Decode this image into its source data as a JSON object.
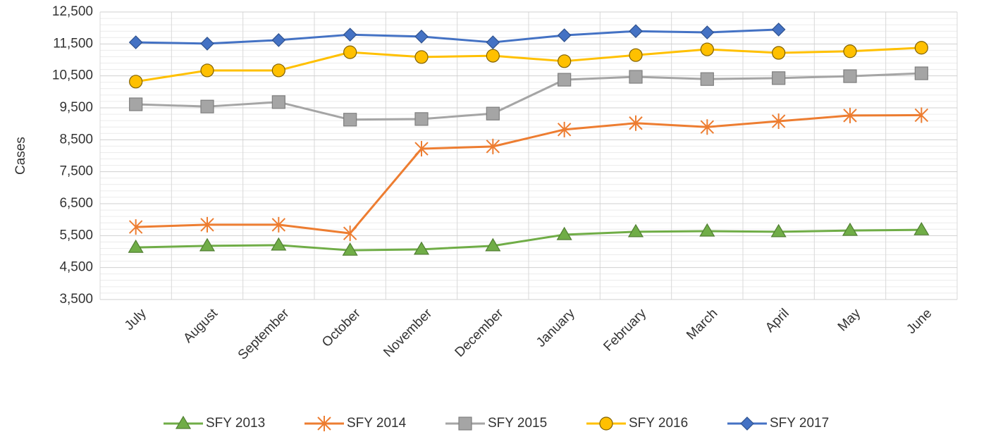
{
  "chart_data": {
    "type": "line",
    "y_label": "Cases",
    "categories": [
      "July",
      "August",
      "September",
      "October",
      "November",
      "December",
      "January",
      "February",
      "March",
      "April",
      "May",
      "June"
    ],
    "series": [
      {
        "name": "SFY 2013",
        "color": "#70ad47",
        "marker": "triangle",
        "values": [
          5130,
          5180,
          5200,
          5040,
          5070,
          5180,
          5530,
          5620,
          5640,
          5620,
          5660,
          5680
        ]
      },
      {
        "name": "SFY 2014",
        "color": "#ed7d31",
        "marker": "star",
        "values": [
          5770,
          5840,
          5840,
          5570,
          8220,
          8290,
          8820,
          9020,
          8900,
          9080,
          9260,
          9270
        ]
      },
      {
        "name": "SFY 2015",
        "color": "#a5a5a5",
        "marker": "square",
        "values": [
          9610,
          9540,
          9680,
          9130,
          9150,
          9320,
          10380,
          10470,
          10400,
          10430,
          10490,
          10580
        ]
      },
      {
        "name": "SFY 2016",
        "color": "#ffc000",
        "marker": "circle",
        "values": [
          10320,
          10670,
          10670,
          11240,
          11090,
          11130,
          10960,
          11150,
          11330,
          11220,
          11270,
          11380
        ]
      },
      {
        "name": "SFY 2017",
        "color": "#4472c4",
        "marker": "diamond",
        "values": [
          11550,
          11510,
          11620,
          11790,
          11730,
          11550,
          11770,
          11900,
          11860,
          11950,
          null,
          null
        ]
      }
    ],
    "ylim": [
      3500,
      12500
    ],
    "yticks": [
      {
        "value": 3500,
        "label": "3,500"
      },
      {
        "value": 4500,
        "label": "4,500"
      },
      {
        "value": 5500,
        "label": "5,500"
      },
      {
        "value": 6500,
        "label": "6,500"
      },
      {
        "value": 7500,
        "label": "7,500"
      },
      {
        "value": 8500,
        "label": "8,500"
      },
      {
        "value": 9500,
        "label": "9,500"
      },
      {
        "value": 10500,
        "label": "10,500"
      },
      {
        "value": 11500,
        "label": "11,500"
      },
      {
        "value": 12500,
        "label": "12,500"
      }
    ],
    "grid": true,
    "minor_grid": true,
    "legend": "bottom"
  }
}
